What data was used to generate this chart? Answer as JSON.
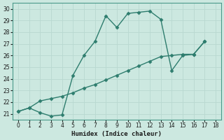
{
  "xlabel": "Humidex (Indice chaleur)",
  "x_line1": [
    0,
    1,
    2,
    3,
    4,
    5,
    6,
    7,
    8,
    9,
    10,
    11,
    12,
    13,
    14,
    15,
    16,
    17
  ],
  "y_line1": [
    21.2,
    21.5,
    21.1,
    20.8,
    20.9,
    24.3,
    26.0,
    27.2,
    29.4,
    28.4,
    29.6,
    29.7,
    29.8,
    29.1,
    24.7,
    26.0,
    26.1,
    27.2
  ],
  "x_line2": [
    0,
    1,
    2,
    3,
    4,
    5,
    6,
    7,
    8,
    9,
    10,
    11,
    12,
    13,
    14,
    15,
    16,
    17
  ],
  "y_line2": [
    21.2,
    21.5,
    22.1,
    22.3,
    22.5,
    22.8,
    23.2,
    23.5,
    23.9,
    24.3,
    24.7,
    25.1,
    25.5,
    25.9,
    26.0,
    26.1,
    26.1,
    27.2
  ],
  "line_color": "#2e7d6e",
  "bg_color": "#cce8e0",
  "grid_color": "#b8d8d0",
  "ylim": [
    20.5,
    30.5
  ],
  "yticks": [
    21,
    22,
    23,
    24,
    25,
    26,
    27,
    28,
    29,
    30
  ],
  "xlim": [
    -0.5,
    18.5
  ],
  "xticks": [
    0,
    1,
    2,
    3,
    4,
    5,
    6,
    7,
    8,
    9,
    10,
    11,
    12,
    13,
    14,
    15,
    16,
    17,
    18
  ]
}
